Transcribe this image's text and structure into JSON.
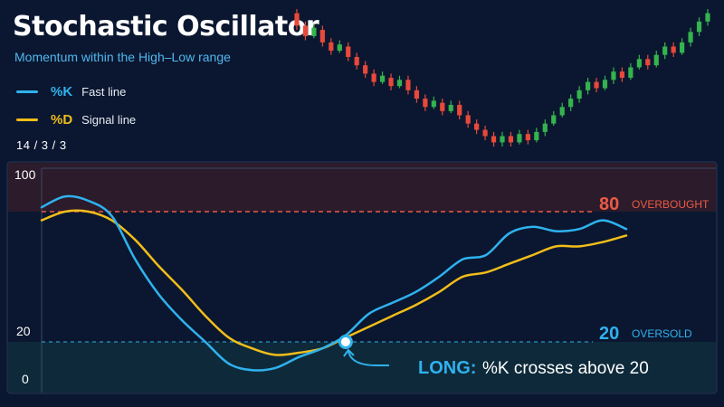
{
  "header": {
    "title": "Stochastic Oscillator",
    "subtitle": "Momentum within the High–Low range",
    "params": "14 / 3 / 3"
  },
  "legend": [
    {
      "name": "%K",
      "desc": "Fast line",
      "color": "#2fb2ee"
    },
    {
      "name": "%D",
      "desc": "Signal line",
      "color": "#f0bd1a"
    }
  ],
  "colors": {
    "background": "#0b1730",
    "overbought_zone": "#2b1b2b",
    "oversold_zone": "#0e2a3a",
    "overbought": "#ea5b45",
    "oversold": "#2fb2ee",
    "candle_up": "#35b34e",
    "candle_down": "#e8493a",
    "signal_text": "#ffffff"
  },
  "levels": {
    "overbought": {
      "value": "80",
      "label": "OVERBOUGHT"
    },
    "oversold": {
      "value": "20",
      "label": "OVERSOLD"
    }
  },
  "annotation": {
    "title": "LONG:",
    "text": "%K crosses above 20"
  },
  "chart_data": {
    "type": "line",
    "ylim": [
      0,
      100
    ],
    "yticks": [
      "100",
      "20",
      "0"
    ],
    "grid": false,
    "legend_position": "top-left",
    "series": [
      {
        "name": "%K",
        "values": [
          82,
          87,
          85,
          78,
          58,
          42,
          30,
          20,
          10,
          7,
          8,
          13,
          17,
          23,
          33,
          38,
          43,
          50,
          58,
          60,
          70,
          73,
          71,
          72,
          76,
          72
        ]
      },
      {
        "name": "%D",
        "values": [
          76,
          80,
          80,
          76,
          67,
          55,
          44,
          32,
          22,
          17,
          14,
          15,
          17,
          22,
          27,
          32,
          37,
          43,
          50,
          52,
          56,
          60,
          64,
          64,
          66,
          69
        ]
      }
    ],
    "signal_point": {
      "index": 13,
      "value": 20
    },
    "candles": [
      [
        74,
        68,
        76,
        66
      ],
      [
        68,
        63,
        70,
        61
      ],
      [
        63,
        67,
        69,
        62
      ],
      [
        66,
        60,
        68,
        58
      ],
      [
        60,
        56,
        62,
        54
      ],
      [
        56,
        59,
        61,
        55
      ],
      [
        58,
        53,
        60,
        51
      ],
      [
        53,
        49,
        55,
        47
      ],
      [
        49,
        45,
        51,
        43
      ],
      [
        45,
        41,
        47,
        39
      ],
      [
        41,
        44,
        46,
        40
      ],
      [
        43,
        39,
        45,
        37
      ],
      [
        39,
        42,
        44,
        38
      ],
      [
        42,
        37,
        44,
        35
      ],
      [
        37,
        33,
        39,
        31
      ],
      [
        33,
        29,
        35,
        27
      ],
      [
        29,
        32,
        34,
        28
      ],
      [
        31,
        27,
        33,
        25
      ],
      [
        27,
        30,
        32,
        26
      ],
      [
        30,
        25,
        32,
        23
      ],
      [
        25,
        21,
        27,
        19
      ],
      [
        21,
        18,
        23,
        16
      ],
      [
        18,
        15,
        20,
        13
      ],
      [
        15,
        12,
        17,
        10
      ],
      [
        12,
        15,
        17,
        10
      ],
      [
        15,
        12,
        17,
        10
      ],
      [
        12,
        16,
        18,
        11
      ],
      [
        16,
        13,
        18,
        11
      ],
      [
        13,
        17,
        19,
        12
      ],
      [
        17,
        21,
        23,
        15
      ],
      [
        21,
        25,
        27,
        20
      ],
      [
        25,
        29,
        31,
        24
      ],
      [
        29,
        33,
        35,
        27
      ],
      [
        33,
        37,
        39,
        31
      ],
      [
        37,
        41,
        43,
        35
      ],
      [
        41,
        38,
        43,
        36
      ],
      [
        38,
        42,
        44,
        37
      ],
      [
        42,
        46,
        48,
        40
      ],
      [
        46,
        43,
        48,
        41
      ],
      [
        43,
        48,
        50,
        42
      ],
      [
        48,
        52,
        54,
        47
      ],
      [
        52,
        49,
        54,
        47
      ],
      [
        49,
        54,
        56,
        48
      ],
      [
        54,
        58,
        60,
        52
      ],
      [
        58,
        55,
        60,
        53
      ],
      [
        55,
        60,
        62,
        54
      ],
      [
        60,
        65,
        67,
        58
      ],
      [
        65,
        70,
        72,
        63
      ],
      [
        70,
        74,
        76,
        68
      ]
    ]
  }
}
